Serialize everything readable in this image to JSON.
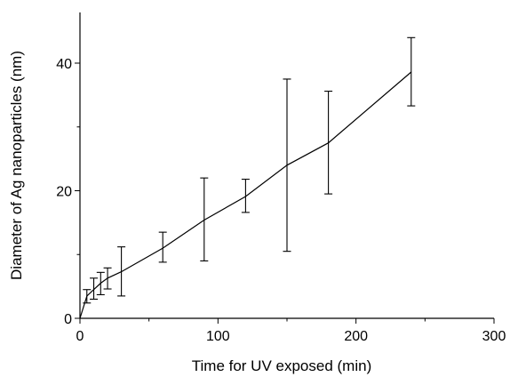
{
  "chart_data": {
    "type": "line",
    "title": "",
    "xlabel": "Time for UV exposed (min)",
    "ylabel": "Diameter of Ag nanoparticles (nm)",
    "xlim": [
      0,
      300
    ],
    "ylim": [
      0,
      47
    ],
    "x_ticks": [
      0,
      100,
      200,
      300
    ],
    "x_tick_labels": [
      "0",
      "100",
      "200",
      "300"
    ],
    "y_ticks": [
      0,
      20,
      40
    ],
    "y_tick_labels": [
      "0",
      "20",
      "40"
    ],
    "grid": false,
    "legend": "none",
    "series": [
      {
        "x": [
          0,
          5,
          10,
          15,
          20,
          30,
          60,
          90,
          120,
          150,
          180,
          240
        ],
        "y": [
          0,
          3.5,
          4.5,
          5.5,
          6.3,
          7.3,
          11.0,
          15.4,
          19.1,
          24.0,
          27.5,
          38.6
        ],
        "err_low": [
          0,
          2.4,
          3.0,
          3.7,
          4.6,
          3.5,
          8.8,
          9.0,
          16.6,
          10.5,
          19.5,
          33.3
        ],
        "err_high": [
          0,
          4.5,
          6.3,
          7.2,
          7.9,
          11.2,
          13.5,
          22.0,
          21.8,
          37.5,
          35.6,
          44.0
        ]
      }
    ]
  }
}
